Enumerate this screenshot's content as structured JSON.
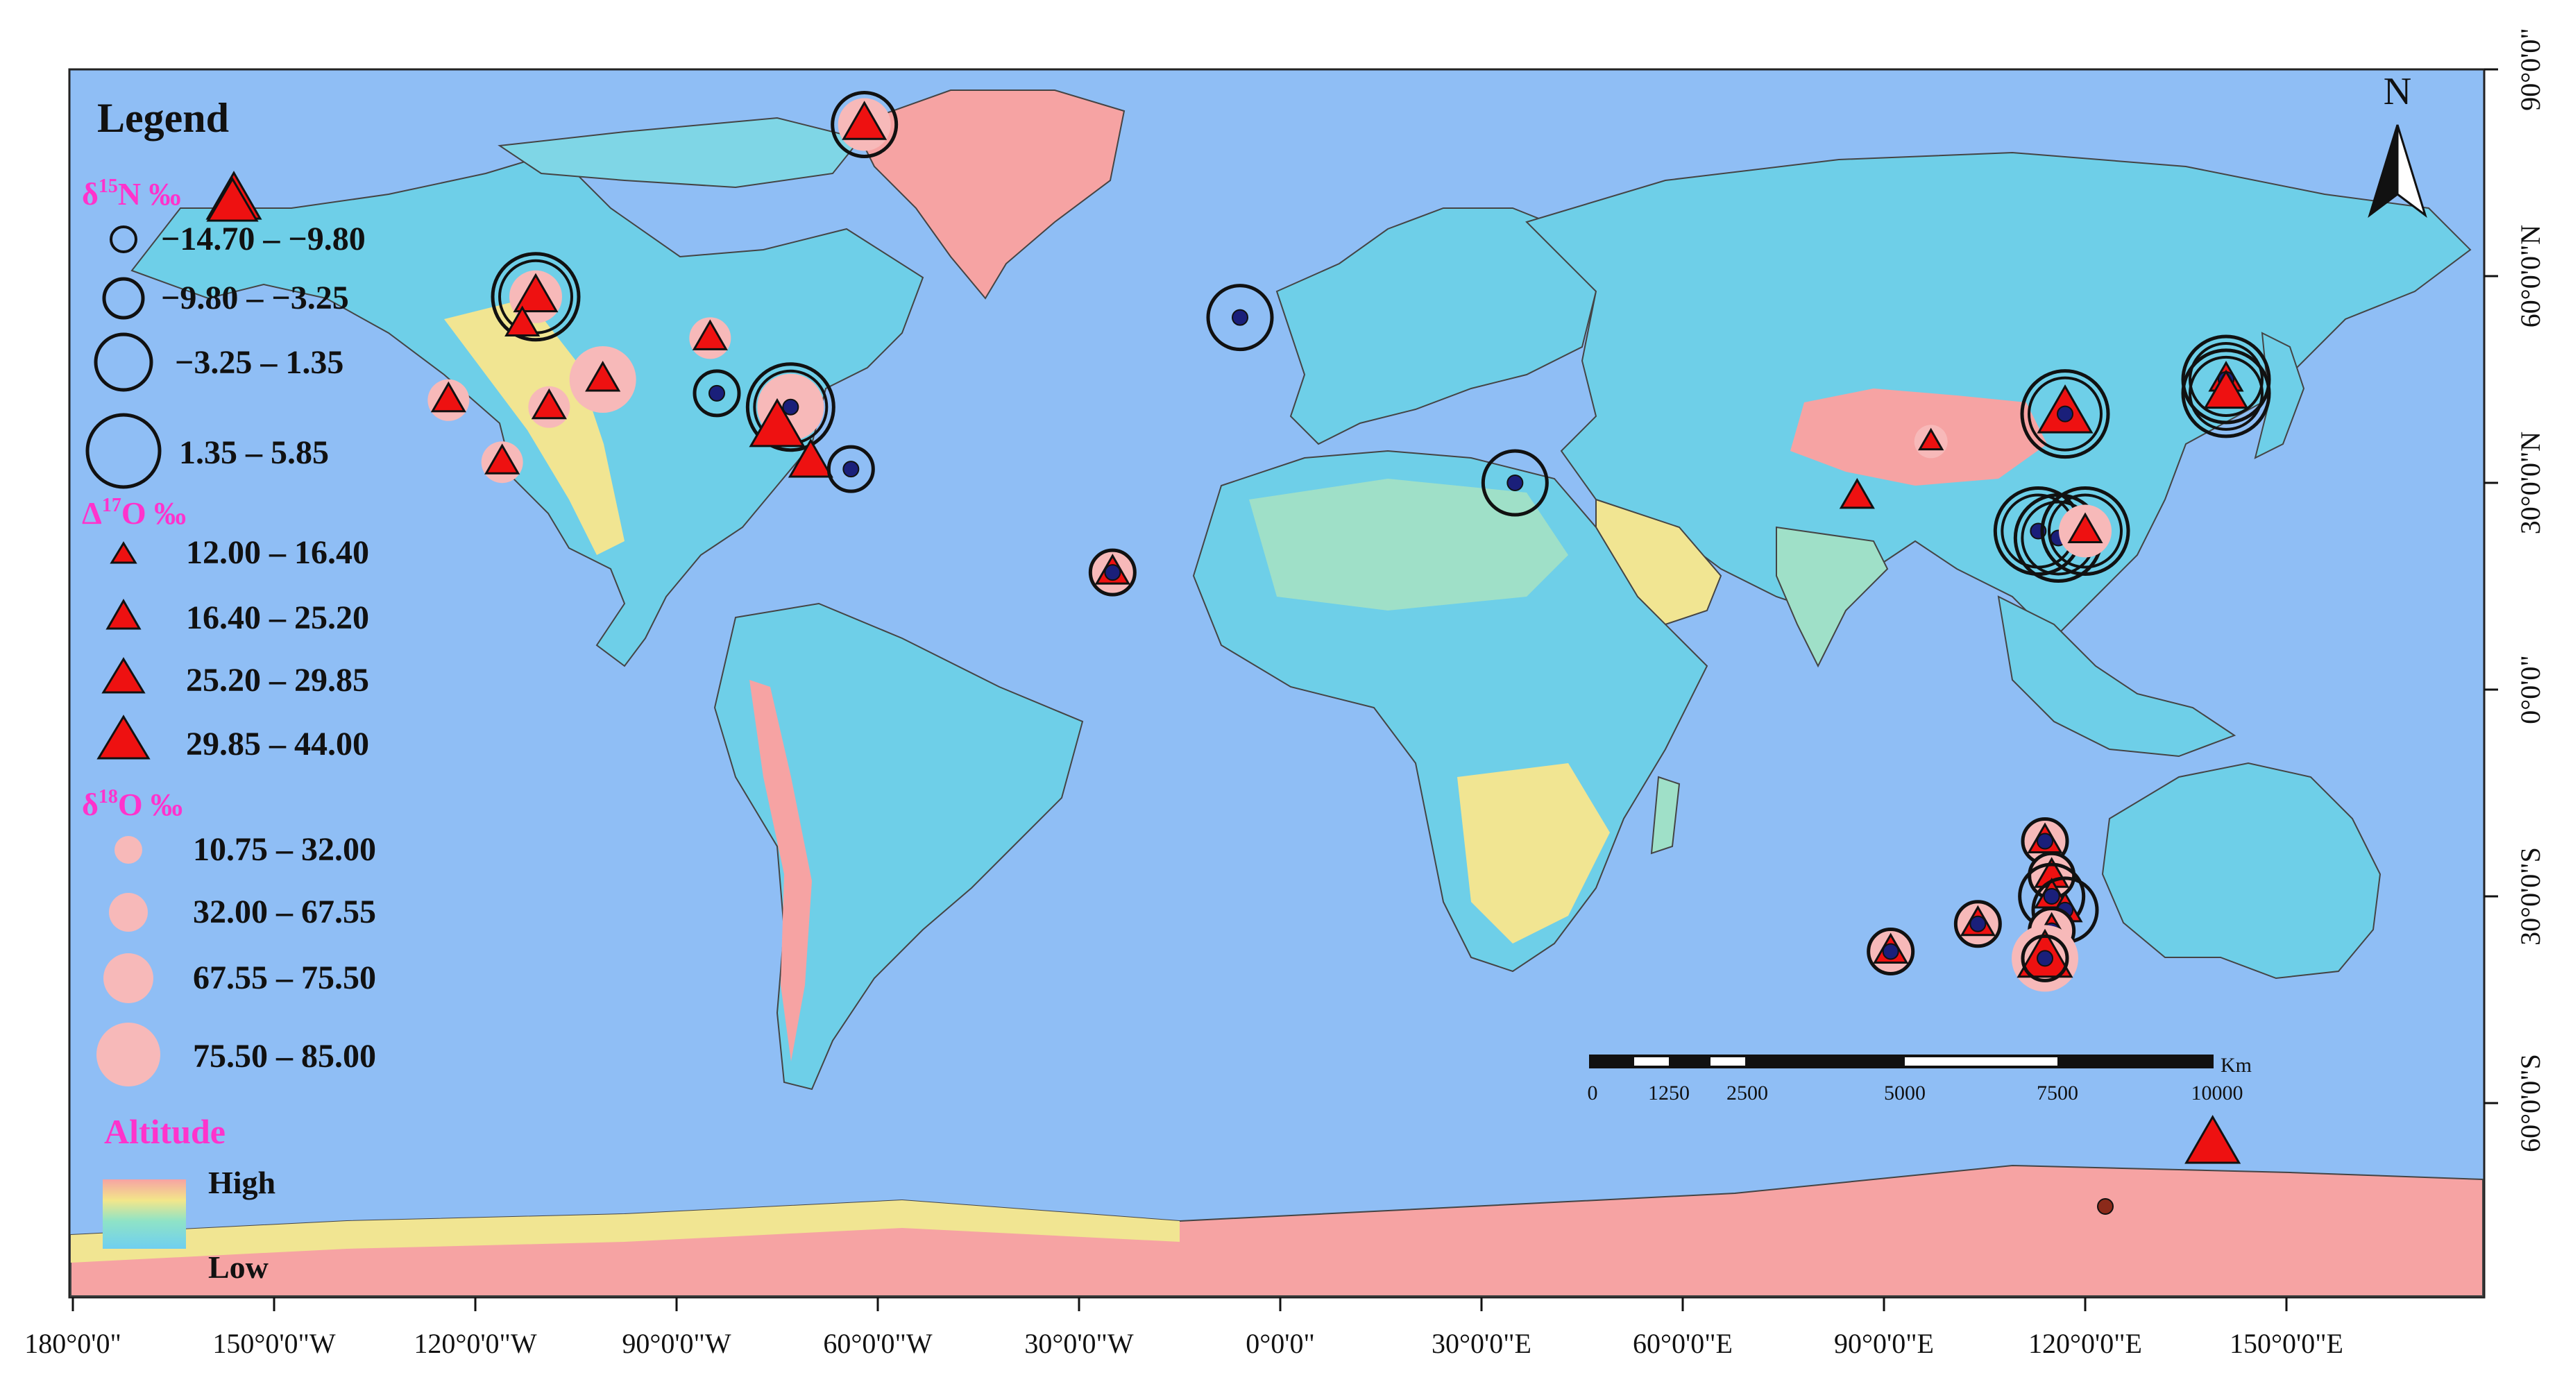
{
  "legend": {
    "title": "Legend",
    "d15n": {
      "heading_prefix": "δ",
      "heading_sup": "15",
      "heading_suffix": "N ‰",
      "classes": [
        "−14.70 – −9.80",
        "−9.80 – −3.25",
        "−3.25 – 1.35",
        "1.35 – 5.85"
      ]
    },
    "d17o": {
      "heading_prefix": "Δ",
      "heading_sup": "17",
      "heading_suffix": "O ‰",
      "classes": [
        "12.00 – 16.40",
        "16.40 – 25.20",
        "25.20 – 29.85",
        "29.85 – 44.00"
      ]
    },
    "d18o": {
      "heading_prefix": "δ",
      "heading_sup": "18",
      "heading_suffix": "O ‰",
      "classes": [
        "10.75 – 32.00",
        "32.00 – 67.55",
        "67.55 – 75.50",
        "75.50 – 85.00"
      ]
    },
    "altitude": {
      "heading": "Altitude",
      "high": "High",
      "low": "Low"
    }
  },
  "north_arrow": {
    "label": "N"
  },
  "scale_bar": {
    "unit": "Km",
    "labels": [
      "0",
      "1250",
      "2500",
      "5000",
      "7500",
      "10000"
    ]
  },
  "axes": {
    "bottom": [
      "180°0'0\"",
      "150°0'0\"W",
      "120°0'0\"W",
      "90°0'0\"W",
      "60°0'0\"W",
      "30°0'0\"W",
      "0°0'0\"",
      "30°0'0\"E",
      "60°0'0\"E",
      "90°0'0\"E",
      "120°0'0\"E",
      "150°0'0\"E"
    ],
    "right": [
      "90°0'0\"",
      "60°0'0\"N",
      "30°0'0\"N",
      "0°0'0\"",
      "30°0'0\"S",
      "60°0'0\"S"
    ]
  },
  "colors": {
    "ocean": "#8fbef5",
    "highland": "#f6a3a3",
    "marker_red": "#ee1111",
    "marker_pink": "#f7b9b9",
    "marker_navy": "#1a1f7a",
    "legend_magenta": "#ff33cc"
  },
  "stations": [
    {
      "lon": -62,
      "lat": 82,
      "n": 3,
      "o17": 3,
      "o18": 3
    },
    {
      "lon": -156,
      "lat": 71,
      "o17": 4
    },
    {
      "lon": -111,
      "lat": 57,
      "n": 4,
      "o17": 3,
      "o18": 3
    },
    {
      "lon": -113,
      "lat": 53,
      "o17": 2
    },
    {
      "lon": -124,
      "lat": 42,
      "o17": 2,
      "o18": 2
    },
    {
      "lon": -116,
      "lat": 33,
      "o17": 2,
      "o18": 2
    },
    {
      "lon": -109,
      "lat": 41,
      "o17": 2,
      "o18": 2
    },
    {
      "lon": -101,
      "lat": 45,
      "o17": 2,
      "o18": 4
    },
    {
      "lon": -85,
      "lat": 51,
      "o17": 2,
      "o18": 2
    },
    {
      "lon": -84,
      "lat": 43,
      "n": 2,
      "navy": true
    },
    {
      "lon": -73,
      "lat": 41,
      "n": 4,
      "navy": true,
      "o18": 4
    },
    {
      "lon": -75,
      "lat": 38,
      "o17": 4
    },
    {
      "lon": -70,
      "lat": 33,
      "o17": 3
    },
    {
      "lon": -64,
      "lat": 32,
      "n": 2,
      "navy": true
    },
    {
      "lon": -25,
      "lat": 17,
      "n": 2,
      "o17": 2,
      "o18": 2,
      "navy": true
    },
    {
      "lon": -6,
      "lat": 54,
      "n": 3,
      "navy": true
    },
    {
      "lon": 35,
      "lat": 30,
      "n": 3,
      "navy": true
    },
    {
      "lon": 86,
      "lat": 28,
      "o17": 2
    },
    {
      "lon": 97,
      "lat": 36,
      "o17": 1,
      "o18": 1
    },
    {
      "lon": 117,
      "lat": 40,
      "n": 4,
      "o17": 4,
      "navy": true
    },
    {
      "lon": 113,
      "lat": 23,
      "n": 4,
      "navy": true
    },
    {
      "lon": 116,
      "lat": 22,
      "n": 4,
      "navy": true
    },
    {
      "lon": 120,
      "lat": 23,
      "n": 4,
      "o17": 2,
      "o18": 3
    },
    {
      "lon": 141,
      "lat": 45,
      "n": 4,
      "o17": 2,
      "navy": true
    },
    {
      "lon": 141,
      "lat": 43,
      "n": 4,
      "o17": 3
    },
    {
      "lon": 114,
      "lat": -22,
      "n": 2,
      "o17": 2,
      "o18": 2,
      "navy": true
    },
    {
      "lon": 115,
      "lat": -27,
      "n": 2,
      "o17": 2,
      "o18": 2
    },
    {
      "lon": 115,
      "lat": -30,
      "n": 3,
      "o17": 2,
      "navy": true
    },
    {
      "lon": 117,
      "lat": -32,
      "n": 3,
      "o17": 2,
      "navy": true
    },
    {
      "lon": 115,
      "lat": -35,
      "n": 2,
      "o17": 2,
      "o18": 2,
      "navy": true
    },
    {
      "lon": 114,
      "lat": -39,
      "n": 2,
      "o17": 4,
      "o18": 4,
      "navy": true
    },
    {
      "lon": 104,
      "lat": -34,
      "n": 2,
      "o17": 2,
      "o18": 2,
      "navy": true
    },
    {
      "lon": 91,
      "lat": -38,
      "n": 2,
      "o17": 2,
      "o18": 2,
      "navy": true
    },
    {
      "lon": 139,
      "lat": -66,
      "o17": 4
    },
    {
      "lon": 123,
      "lat": -75,
      "navy": true,
      "brown": true
    }
  ]
}
